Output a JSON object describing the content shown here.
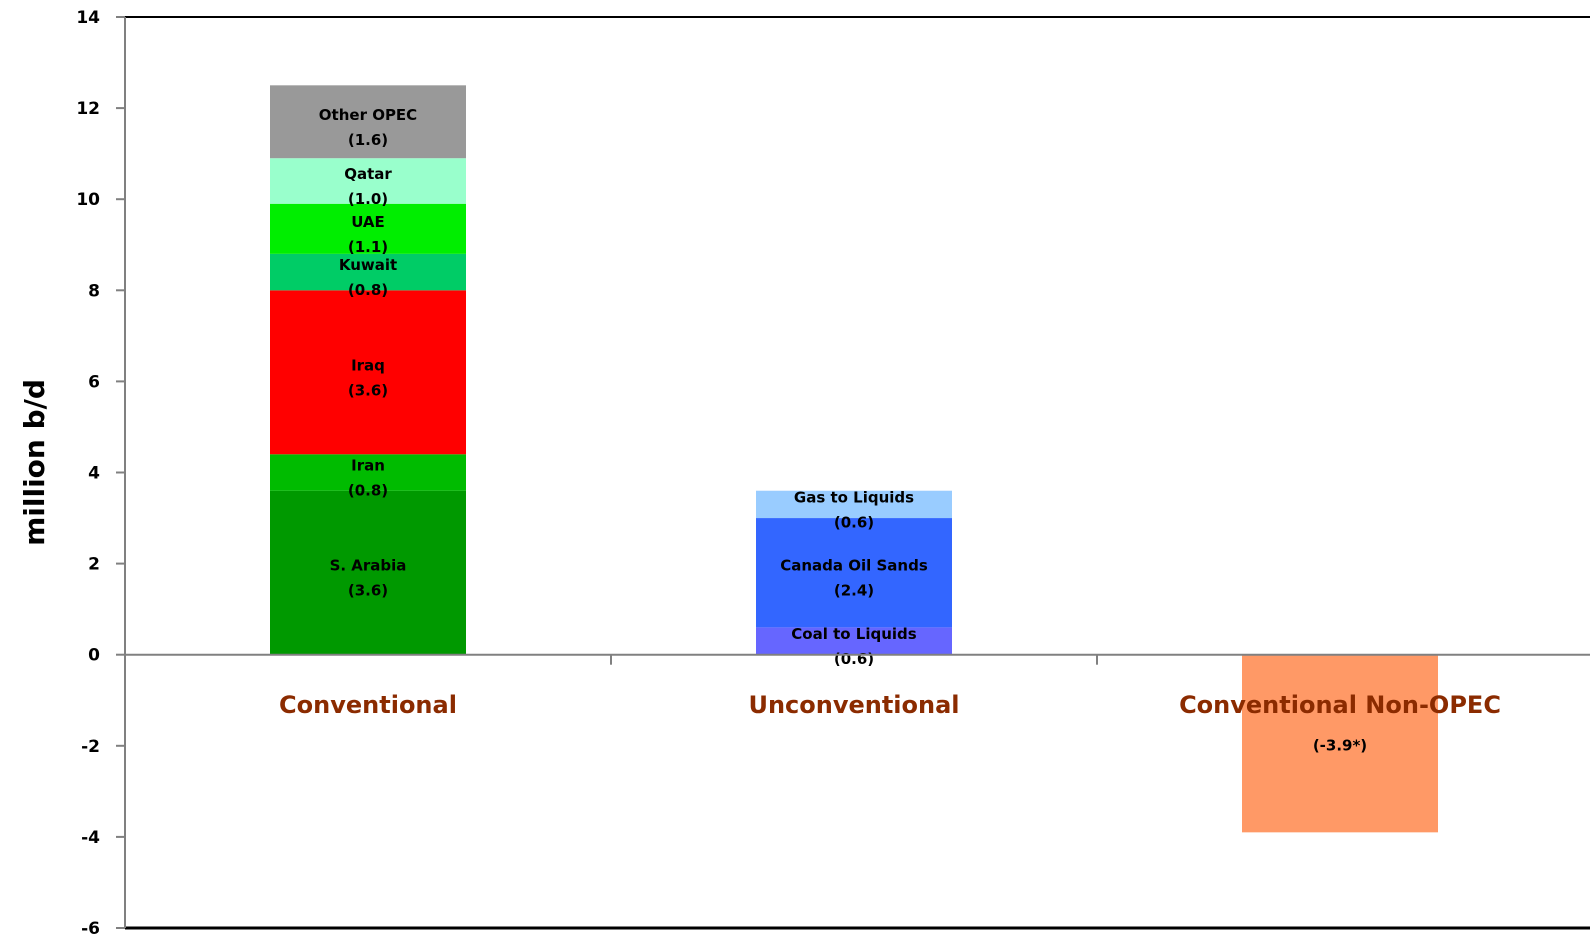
{
  "chart_data": {
    "type": "bar",
    "stacked": true,
    "ylabel": "million b/d",
    "xlabel": "",
    "ylim": [
      -6,
      14
    ],
    "yticks": [
      14,
      12,
      10,
      8,
      6,
      4,
      2,
      0,
      -2,
      -4,
      -6
    ],
    "grid": false,
    "legend": "none",
    "categories": [
      {
        "label": "Conventional",
        "segments": [
          {
            "name": "S. Arabia",
            "value": 3.6,
            "value_label": "(3.6)",
            "color": "#009900"
          },
          {
            "name": "Iran",
            "value": 0.8,
            "value_label": "(0.8)",
            "color": "#00bb00"
          },
          {
            "name": "Iraq",
            "value": 3.6,
            "value_label": "(3.6)",
            "color": "#ff0000"
          },
          {
            "name": "Kuwait",
            "value": 0.8,
            "value_label": "(0.8)",
            "color": "#00cc66"
          },
          {
            "name": "UAE",
            "value": 1.1,
            "value_label": "(1.1)",
            "color": "#00ee00"
          },
          {
            "name": "Qatar",
            "value": 1.0,
            "value_label": "(1.0)",
            "color": "#99ffcc"
          },
          {
            "name": "Other OPEC",
            "value": 1.6,
            "value_label": "(1.6)",
            "color": "#999999"
          }
        ]
      },
      {
        "label": "Unconventional",
        "segments": [
          {
            "name": "Coal to Liquids",
            "value": 0.6,
            "value_label": "(0.6)",
            "color": "#6666ff"
          },
          {
            "name": "Canada Oil Sands",
            "value": 2.4,
            "value_label": "(2.4)",
            "color": "#3366ff"
          },
          {
            "name": "Gas to Liquids",
            "value": 0.6,
            "value_label": "(0.6)",
            "color": "#99ccff"
          }
        ]
      },
      {
        "label": "Conventional Non-OPEC",
        "segments": [
          {
            "name": "",
            "value": -3.9,
            "value_label": "(-3.9*)",
            "color": "#ff9966"
          }
        ]
      }
    ]
  }
}
